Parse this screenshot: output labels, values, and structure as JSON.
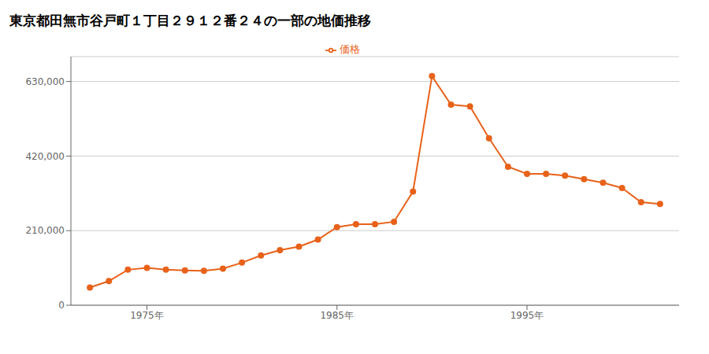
{
  "chart_data": {
    "type": "line",
    "title": "東京都田無市谷戸町１丁目２９１２番２４の一部の地価推移",
    "x": [
      1972,
      1973,
      1974,
      1975,
      1976,
      1977,
      1978,
      1979,
      1980,
      1981,
      1982,
      1983,
      1984,
      1985,
      1986,
      1987,
      1988,
      1989,
      1990,
      1991,
      1992,
      1993,
      1994,
      1995,
      1996,
      1997,
      1998,
      1999,
      2000,
      2001,
      2002
    ],
    "series": [
      {
        "name": "価格",
        "color": "#e8621a",
        "marker": "circle",
        "values": [
          50000,
          68000,
          100000,
          105000,
          100000,
          98000,
          97000,
          103000,
          120000,
          140000,
          155000,
          165000,
          185000,
          220000,
          228000,
          228000,
          235000,
          320000,
          645000,
          565000,
          560000,
          470000,
          390000,
          370000,
          370000,
          365000,
          355000,
          345000,
          330000,
          290000,
          285000
        ]
      }
    ],
    "xlim": [
      1971,
      2003
    ],
    "xticks": [
      {
        "value": 1975,
        "label": "1975年"
      },
      {
        "value": 1985,
        "label": "1985年"
      },
      {
        "value": 1995,
        "label": "1995年"
      }
    ],
    "ylim": [
      0,
      700000
    ],
    "yticks": [
      0,
      {
        "value": 210000,
        "label": "210,000"
      },
      {
        "value": 420000,
        "label": "420,000"
      },
      {
        "value": 630000,
        "label": "630,000"
      }
    ],
    "grid": true,
    "legend": "top"
  }
}
